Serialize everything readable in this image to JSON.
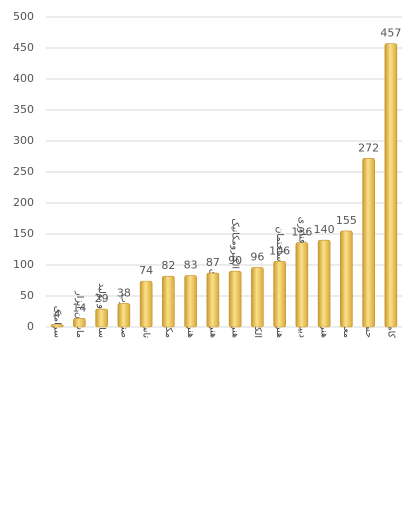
{
  "chart_data": {
    "type": "bar",
    "categories": [
      "سرامیک",
      "ماشین ابزار",
      "ساخت و تولید",
      "صنایع چوب",
      "تاسیسات",
      "مکانیک خودرو",
      "هنرآموز گرافیک",
      "هنرآموز کودکیاری",
      "هنرآموز استادکار الکترومکانیک",
      "الکترونیک",
      "هنرآموز و استادکار ساختمان",
      "دبیر حرفه و فن و کار و فناوری",
      "هنرآموز طراحی و دوخت",
      "معماری",
      "حسابداری",
      "کامپیوتر"
    ],
    "values": [
      4,
      14,
      29,
      38,
      74,
      82,
      83,
      87,
      90,
      96,
      106,
      136,
      140,
      155,
      272,
      457
    ],
    "color": "#f2c45a",
    "ylim": [
      0,
      500
    ],
    "yticks": [
      0,
      50,
      100,
      150,
      200,
      250,
      300,
      350,
      400,
      450,
      500
    ],
    "grid": true
  }
}
